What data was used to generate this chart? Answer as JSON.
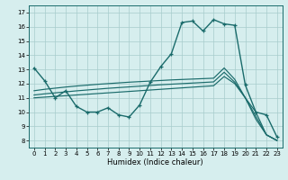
{
  "xlabel": "Humidex (Indice chaleur)",
  "xlim": [
    -0.5,
    23.5
  ],
  "ylim": [
    7.5,
    17.5
  ],
  "yticks": [
    8,
    9,
    10,
    11,
    12,
    13,
    14,
    15,
    16,
    17
  ],
  "xticks": [
    0,
    1,
    2,
    3,
    4,
    5,
    6,
    7,
    8,
    9,
    10,
    11,
    12,
    13,
    14,
    15,
    16,
    17,
    18,
    19,
    20,
    21,
    22,
    23
  ],
  "background_color": "#d6eeee",
  "line_color": "#1a6b6b",
  "grid_color": "#a8cccc",
  "main_line": [
    13.1,
    12.2,
    11.0,
    11.5,
    10.4,
    10.0,
    10.0,
    10.3,
    9.8,
    9.65,
    10.5,
    12.1,
    13.2,
    14.1,
    16.3,
    16.4,
    15.7,
    16.5,
    16.2,
    16.1,
    11.9,
    10.0,
    9.8,
    8.25
  ],
  "ref1": [
    11.0,
    11.05,
    11.1,
    11.15,
    11.2,
    11.25,
    11.3,
    11.35,
    11.4,
    11.45,
    11.5,
    11.55,
    11.6,
    11.65,
    11.7,
    11.75,
    11.8,
    11.85,
    12.5,
    12.0,
    11.0,
    10.0,
    8.4,
    8.0
  ],
  "ref2": [
    11.2,
    11.28,
    11.35,
    11.42,
    11.49,
    11.55,
    11.61,
    11.67,
    11.72,
    11.77,
    11.82,
    11.87,
    11.92,
    11.96,
    12.0,
    12.04,
    12.08,
    12.12,
    12.8,
    12.1,
    11.0,
    9.7,
    8.4,
    8.0
  ],
  "ref3": [
    11.5,
    11.6,
    11.68,
    11.76,
    11.83,
    11.89,
    11.95,
    12.0,
    12.05,
    12.1,
    12.14,
    12.18,
    12.22,
    12.26,
    12.29,
    12.32,
    12.35,
    12.38,
    13.1,
    12.3,
    11.0,
    9.5,
    8.4,
    8.0
  ]
}
